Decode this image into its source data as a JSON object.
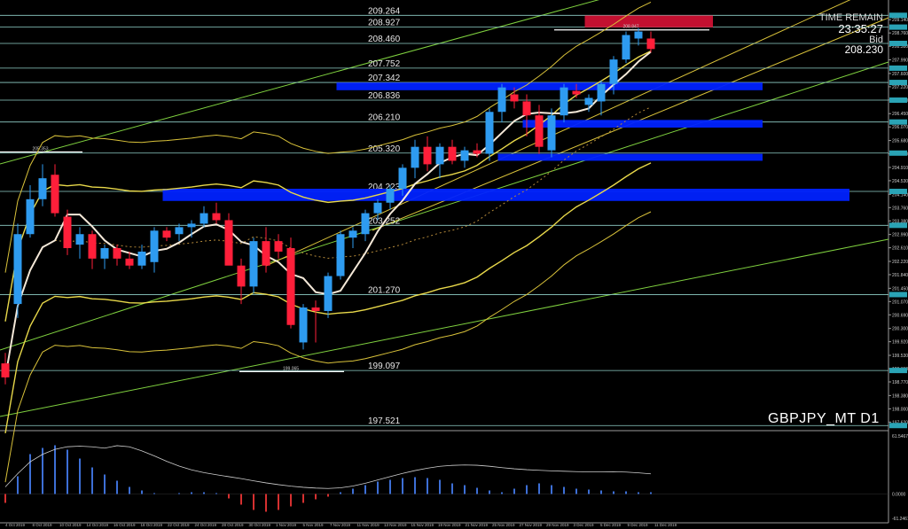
{
  "chart_data": {
    "type": "candlestick",
    "symbol_label": "GBPJPY_MT D1",
    "hud": {
      "label": "TIME REMAIN",
      "time": "23:35:27",
      "bid_label": "Bid",
      "bid_value": "208.230"
    },
    "price_axis": {
      "ylim": [
        197.4,
        209.5
      ],
      "ticks": [
        "209.140",
        "208.760",
        "208.380",
        "207.990",
        "207.600",
        "207.220",
        "206.840",
        "206.450",
        "206.070",
        "205.680",
        "205.300",
        "204.910",
        "204.530",
        "204.140",
        "203.760",
        "203.380",
        "202.990",
        "202.610",
        "202.220",
        "201.840",
        "201.450",
        "201.070",
        "200.690",
        "200.300",
        "199.920",
        "199.530",
        "199.150",
        "198.770",
        "198.380",
        "198.000",
        "197.620",
        "197.240"
      ]
    },
    "level_lines": [
      {
        "value": 209.264,
        "label": "209.264"
      },
      {
        "value": 208.927,
        "label": "208.927"
      },
      {
        "value": 208.46,
        "label": "208.460"
      },
      {
        "value": 207.752,
        "label": "207.752"
      },
      {
        "value": 207.342,
        "label": "207.342"
      },
      {
        "value": 206.836,
        "label": "206.836"
      },
      {
        "value": 206.21,
        "label": "206.210"
      },
      {
        "value": 205.32,
        "label": "205.320"
      },
      {
        "value": 204.223,
        "label": "204.223"
      },
      {
        "value": 203.252,
        "label": "203.252"
      },
      {
        "value": 201.27,
        "label": "201.270"
      },
      {
        "value": 199.097,
        "label": "199.097"
      },
      {
        "value": 197.521,
        "label": "197.521"
      }
    ],
    "marked_prices": [
      {
        "value": 205.353,
        "label": "205.353"
      },
      {
        "value": 208.847,
        "label": "208.847"
      },
      {
        "value": 199.065,
        "label": "199.065"
      }
    ],
    "zones": [
      {
        "color": "#0022ff",
        "from_index": 13,
        "to_index": 68,
        "low": 203.95,
        "high": 204.3
      },
      {
        "color": "#0022ff",
        "from_index": 27,
        "to_index": 61,
        "low": 207.12,
        "high": 207.34
      },
      {
        "color": "#0022ff",
        "from_index": 42,
        "to_index": 61,
        "low": 206.05,
        "high": 206.27
      },
      {
        "color": "#0022ff",
        "from_index": 40,
        "to_index": 61,
        "low": 205.1,
        "high": 205.3
      },
      {
        "color": "#cc1133",
        "from_index": 47,
        "to_index": 57,
        "low": 208.92,
        "high": 209.26
      }
    ],
    "candles": [
      [
        199.3,
        199.6,
        198.7,
        198.9
      ],
      [
        201.0,
        203.3,
        200.6,
        203.0
      ],
      [
        203.0,
        204.4,
        202.9,
        204.0
      ],
      [
        204.0,
        205.0,
        203.8,
        204.6
      ],
      [
        204.7,
        205.0,
        203.5,
        203.6
      ],
      [
        203.5,
        203.7,
        202.4,
        202.6
      ],
      [
        202.7,
        203.2,
        202.3,
        203.0
      ],
      [
        203.0,
        203.1,
        202.0,
        202.3
      ],
      [
        202.3,
        202.7,
        202.0,
        202.6
      ],
      [
        202.6,
        202.7,
        202.1,
        202.3
      ],
      [
        202.3,
        202.5,
        202.0,
        202.1
      ],
      [
        202.1,
        202.7,
        202.0,
        202.5
      ],
      [
        202.2,
        203.2,
        201.9,
        203.1
      ],
      [
        203.1,
        203.2,
        202.8,
        202.9
      ],
      [
        203.0,
        203.3,
        202.8,
        203.2
      ],
      [
        203.2,
        203.4,
        202.9,
        203.3
      ],
      [
        203.3,
        203.8,
        203.2,
        203.6
      ],
      [
        203.6,
        203.9,
        203.3,
        203.4
      ],
      [
        203.4,
        203.6,
        202.2,
        202.1
      ],
      [
        202.1,
        202.3,
        201.0,
        201.5
      ],
      [
        201.5,
        202.9,
        201.3,
        202.8
      ],
      [
        202.8,
        203.2,
        201.9,
        202.1
      ],
      [
        202.8,
        203.0,
        202.3,
        202.5
      ],
      [
        202.6,
        202.9,
        200.3,
        200.4
      ],
      [
        199.9,
        201.0,
        199.7,
        200.9
      ],
      [
        200.9,
        201.1,
        199.9,
        200.8
      ],
      [
        200.8,
        201.9,
        200.6,
        201.8
      ],
      [
        201.8,
        203.1,
        201.7,
        203.0
      ],
      [
        202.9,
        203.2,
        202.6,
        203.1
      ],
      [
        203.0,
        203.7,
        202.8,
        203.6
      ],
      [
        203.6,
        204.0,
        203.4,
        203.9
      ],
      [
        203.9,
        204.4,
        203.7,
        204.3
      ],
      [
        204.3,
        205.0,
        204.1,
        204.9
      ],
      [
        204.9,
        205.7,
        204.6,
        205.5
      ],
      [
        205.5,
        205.8,
        204.8,
        205.0
      ],
      [
        205.0,
        205.6,
        204.6,
        205.5
      ],
      [
        205.5,
        205.7,
        205.0,
        205.1
      ],
      [
        205.1,
        205.5,
        204.9,
        205.4
      ],
      [
        205.4,
        205.6,
        205.2,
        205.3
      ],
      [
        205.3,
        206.6,
        205.1,
        206.5
      ],
      [
        206.5,
        207.3,
        206.2,
        207.2
      ],
      [
        207.0,
        207.2,
        206.6,
        206.8
      ],
      [
        206.8,
        207.0,
        205.8,
        206.4
      ],
      [
        206.4,
        206.7,
        205.3,
        205.5
      ],
      [
        205.4,
        206.6,
        205.2,
        206.4
      ],
      [
        206.4,
        207.3,
        206.2,
        207.2
      ],
      [
        207.1,
        207.3,
        206.9,
        207.0
      ],
      [
        206.7,
        207.0,
        206.5,
        206.9
      ],
      [
        206.8,
        207.4,
        206.4,
        207.3
      ],
      [
        207.3,
        208.1,
        207.0,
        208.0
      ],
      [
        208.0,
        208.8,
        207.9,
        208.7
      ],
      [
        208.6,
        208.9,
        208.4,
        208.8
      ],
      [
        208.6,
        208.8,
        208.2,
        208.3
      ]
    ],
    "date_labels": [
      "4 Oct 2019",
      "8 Oct 2019",
      "10 Oct 2019",
      "14 Oct 2019",
      "16 Oct 2019",
      "18 Oct 2019",
      "22 Oct 2019",
      "24 Oct 2019",
      "28 Oct 2019",
      "30 Oct 2019",
      "1 Nov 2019",
      "5 Nov 2019",
      "7 Nov 2019",
      "11 Nov 2019",
      "13 Nov 2019",
      "15 Nov 2019",
      "19 Nov 2019",
      "21 Nov 2019",
      "25 Nov 2019",
      "27 Nov 2019",
      "29 Nov 2019",
      "3 Dec 2019",
      "5 Dec 2019",
      "9 Dec 2019",
      "11 Dec 2019"
    ],
    "indicator": {
      "axis_ticks": [
        "61.5467",
        "0.0000",
        "-61.2461"
      ],
      "histogram": [
        -10,
        20,
        45,
        52,
        55,
        50,
        40,
        30,
        22,
        15,
        8,
        4,
        1,
        0,
        1,
        2,
        2,
        1,
        -5,
        -12,
        -18,
        -20,
        -18,
        -14,
        -10,
        -6,
        -3,
        2,
        6,
        10,
        14,
        16,
        18,
        19,
        18,
        16,
        12,
        10,
        7,
        4,
        2,
        6,
        10,
        12,
        10,
        8,
        6,
        5,
        4,
        3,
        3,
        2,
        2
      ]
    }
  }
}
